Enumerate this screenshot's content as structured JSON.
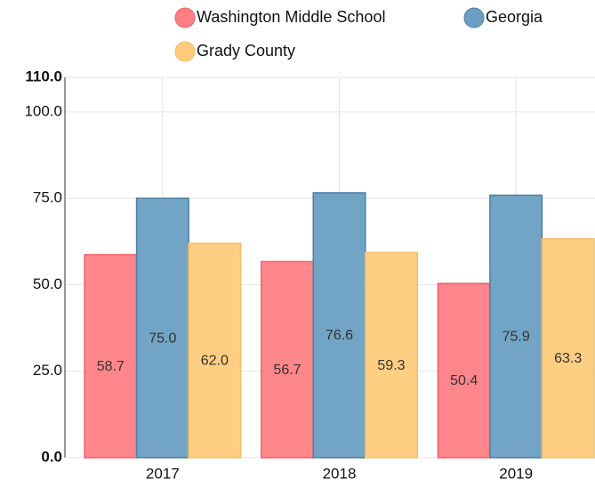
{
  "chart_data": {
    "type": "bar",
    "categories": [
      "2017",
      "2018",
      "2019"
    ],
    "series": [
      {
        "name": "Washington Middle School",
        "color": "#ff7f85",
        "stroke": "#f0606b",
        "values": [
          58.7,
          56.7,
          50.4
        ],
        "value_labels": [
          "58.7",
          "56.7",
          "50.4"
        ]
      },
      {
        "name": "Georgia",
        "color": "#6a9fc2",
        "stroke": "#4a7fa6",
        "values": [
          75.0,
          76.6,
          75.9
        ],
        "value_labels": [
          "75.0",
          "76.6",
          "75.9"
        ]
      },
      {
        "name": "Grady County",
        "color": "#fecb7c",
        "stroke": "#f5bd66",
        "values": [
          62.0,
          59.3,
          63.3
        ],
        "value_labels": [
          "62.0",
          "59.3",
          "63.3"
        ]
      }
    ],
    "ylim": [
      0,
      110
    ],
    "yticks": [
      {
        "value": 0,
        "label": "0.0"
      },
      {
        "value": 25,
        "label": "25.0"
      },
      {
        "value": 50,
        "label": "50.0"
      },
      {
        "value": 75,
        "label": "75.0"
      },
      {
        "value": 100,
        "label": "100.0"
      },
      {
        "value": 110,
        "label": "110.0"
      }
    ],
    "grid": true
  }
}
